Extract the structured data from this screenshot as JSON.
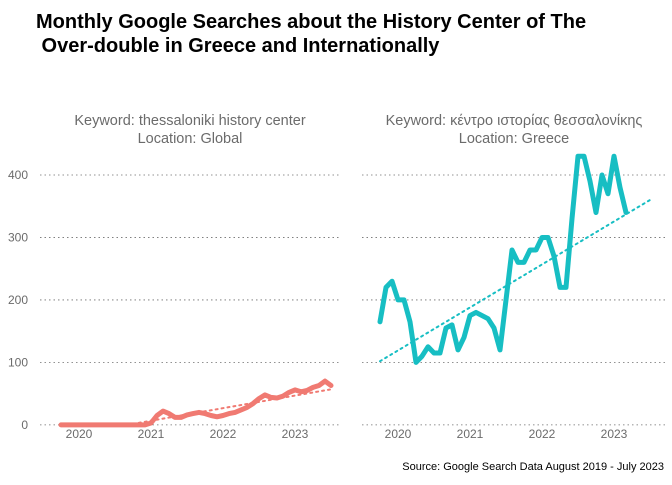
{
  "title_lines": [
    "Monthly Google Searches about the History Center of The",
    " Over-double in Greece and Internationally"
  ],
  "caption": "Source: Google Search Data August 2019 - July 2023",
  "colors": {
    "global": "#F07A72",
    "greece": "#17BEC3",
    "grid": "#6e6e6e",
    "text": "#6b6b6b"
  },
  "chart_data": [
    {
      "type": "line",
      "facet_title": [
        "Keyword: thessaloniki history center",
        "Location: Global"
      ],
      "x_ticks": [
        "2020",
        "2021",
        "2022",
        "2023"
      ],
      "y_ticks": [
        0,
        100,
        200,
        300,
        400
      ],
      "ylim": [
        -5,
        440
      ],
      "xlim": [
        "2019-08",
        "2023-07"
      ],
      "grid": "horizontal dotted",
      "series": [
        {
          "style": "solid",
          "x": [
            "2019-10",
            "2019-11",
            "2019-12",
            "2020-01",
            "2020-02",
            "2020-03",
            "2020-04",
            "2020-05",
            "2020-06",
            "2020-07",
            "2020-08",
            "2020-09",
            "2020-10",
            "2020-11",
            "2020-12",
            "2021-01",
            "2021-02",
            "2021-03",
            "2021-04",
            "2021-05",
            "2021-06",
            "2021-07",
            "2021-08",
            "2021-09",
            "2021-10",
            "2021-11",
            "2021-12",
            "2022-01",
            "2022-02",
            "2022-03",
            "2022-04",
            "2022-05",
            "2022-06",
            "2022-07",
            "2022-08",
            "2022-09",
            "2022-10",
            "2022-11",
            "2022-12",
            "2023-01",
            "2023-02",
            "2023-03",
            "2023-04",
            "2023-05",
            "2023-06",
            "2023-07"
          ],
          "values": [
            0,
            0,
            0,
            0,
            0,
            0,
            0,
            0,
            0,
            0,
            0,
            0,
            0,
            0,
            0,
            3,
            15,
            22,
            18,
            12,
            12,
            16,
            18,
            20,
            18,
            15,
            13,
            15,
            18,
            20,
            24,
            28,
            34,
            42,
            48,
            44,
            43,
            46,
            52,
            56,
            53,
            55,
            60,
            63,
            70,
            63
          ]
        },
        {
          "style": "dotted trend",
          "x": [
            "2020-09",
            "2023-07"
          ],
          "values": [
            0,
            57
          ]
        }
      ]
    },
    {
      "type": "line",
      "facet_title": [
        "Keyword: κέντρο ιστορίας θεσσαλονίκης",
        "Location: Greece"
      ],
      "x_ticks": [
        "2020",
        "2021",
        "2022",
        "2023"
      ],
      "y_ticks": [
        0,
        100,
        200,
        300,
        400
      ],
      "ylim": [
        -5,
        440
      ],
      "xlim": [
        "2019-08",
        "2023-07"
      ],
      "grid": "horizontal dotted",
      "series": [
        {
          "style": "solid",
          "x": [
            "2019-10",
            "2019-11",
            "2019-12",
            "2020-01",
            "2020-02",
            "2020-03",
            "2020-04",
            "2020-05",
            "2020-06",
            "2020-07",
            "2020-08",
            "2020-09",
            "2020-10",
            "2020-11",
            "2020-12",
            "2021-01",
            "2021-02",
            "2021-03",
            "2021-04",
            "2021-05",
            "2021-06",
            "2021-07",
            "2021-08",
            "2021-09",
            "2021-10",
            "2021-11",
            "2021-12",
            "2022-01",
            "2022-02",
            "2022-03",
            "2022-04",
            "2022-05",
            "2022-06",
            "2022-07",
            "2022-08",
            "2022-09",
            "2022-10",
            "2022-11",
            "2022-12",
            "2023-01",
            "2023-02",
            "2023-03",
            "2023-04",
            "2023-05",
            "2023-06",
            "2023-07"
          ],
          "values": [
            165,
            220,
            230,
            200,
            200,
            165,
            100,
            110,
            125,
            115,
            115,
            155,
            160,
            120,
            140,
            175,
            180,
            175,
            170,
            155,
            120,
            200,
            280,
            260,
            260,
            280,
            280,
            300,
            300,
            270,
            220,
            220,
            330,
            430,
            430,
            390,
            340,
            400,
            370,
            430,
            380,
            340,
            null,
            null,
            null,
            null
          ]
        },
        {
          "style": "dotted trend",
          "x": [
            "2019-10",
            "2023-07"
          ],
          "values": [
            102,
            360
          ]
        }
      ]
    }
  ]
}
